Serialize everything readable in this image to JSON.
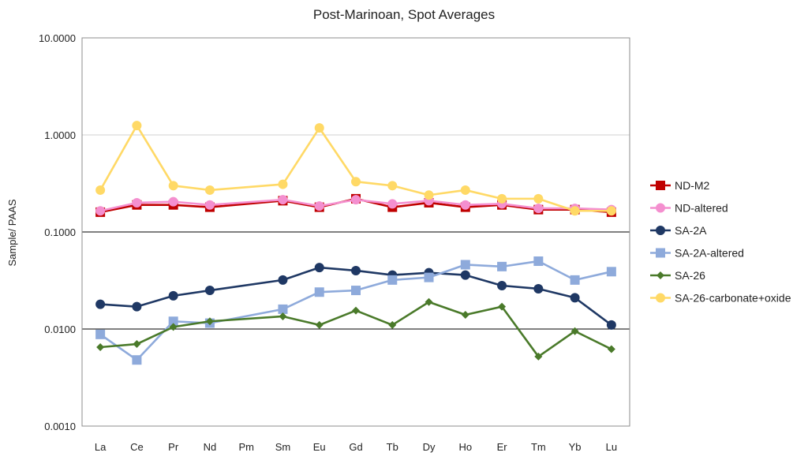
{
  "chart_data": {
    "type": "line",
    "title": "Post-Marinoan, Spot Averages",
    "xlabel": "",
    "ylabel": "Sample/ PAAS",
    "y_scale": "log",
    "ylim": [
      0.001,
      10
    ],
    "y_ticks": [
      "10.0000",
      "1.0000",
      "0.1000",
      "0.0100",
      "0.0010"
    ],
    "categories": [
      "La",
      "Ce",
      "Pr",
      "Nd",
      "Pm",
      "Sm",
      "Eu",
      "Gd",
      "Tb",
      "Dy",
      "Ho",
      "Er",
      "Tm",
      "Yb",
      "Lu"
    ],
    "grid": "horizontal",
    "legend_position": "right",
    "series": [
      {
        "name": "ND-M2",
        "color": "#c00000",
        "marker": "square",
        "values": [
          0.16,
          0.19,
          0.19,
          0.18,
          null,
          0.21,
          0.18,
          0.22,
          0.18,
          0.2,
          0.18,
          0.19,
          0.17,
          0.17,
          0.16
        ]
      },
      {
        "name": "ND-altered",
        "color": "#f48fcf",
        "marker": "circle",
        "values": [
          0.165,
          0.2,
          0.205,
          0.19,
          null,
          0.215,
          0.185,
          0.215,
          0.195,
          0.21,
          0.19,
          0.195,
          0.175,
          0.175,
          0.17
        ]
      },
      {
        "name": "SA-2A",
        "color": "#1f3864",
        "marker": "circle",
        "values": [
          0.018,
          0.017,
          0.022,
          0.025,
          null,
          0.032,
          0.043,
          0.04,
          0.036,
          0.038,
          0.036,
          0.028,
          0.026,
          0.021,
          0.011
        ]
      },
      {
        "name": "SA-2A-altered",
        "color": "#8eaadb",
        "marker": "square",
        "values": [
          0.0088,
          0.0048,
          0.012,
          0.0115,
          null,
          0.016,
          0.024,
          0.025,
          0.032,
          0.034,
          0.046,
          0.044,
          0.05,
          0.032,
          0.039
        ]
      },
      {
        "name": "SA-26",
        "color": "#4a7a2a",
        "marker": "diamond",
        "values": [
          0.0065,
          0.007,
          0.0105,
          0.012,
          null,
          0.0135,
          0.011,
          0.0155,
          0.011,
          0.019,
          0.014,
          0.017,
          0.0052,
          0.0095,
          0.0062
        ]
      },
      {
        "name": "SA-26-carbonate+oxide",
        "color": "#ffd966",
        "marker": "circle",
        "values": [
          0.27,
          1.25,
          0.3,
          0.27,
          null,
          0.31,
          1.18,
          0.33,
          0.3,
          0.24,
          0.27,
          0.22,
          0.22,
          0.165,
          0.165
        ]
      }
    ]
  }
}
